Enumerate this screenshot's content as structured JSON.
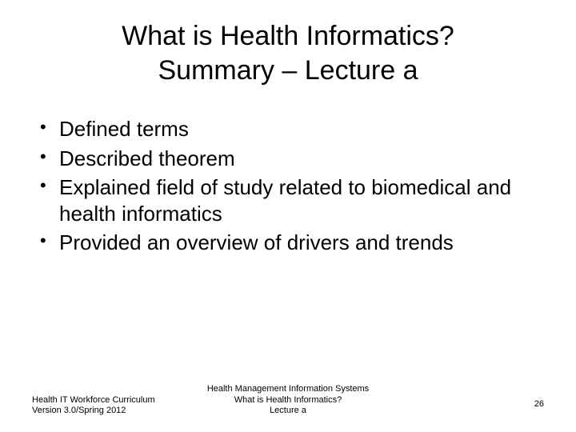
{
  "title_line1": "What is Health Informatics?",
  "title_line2": "Summary – Lecture a",
  "bullets": [
    "Defined terms",
    "Described theorem",
    "Explained field of study related to biomedical and health informatics",
    "Provided an overview of drivers and trends"
  ],
  "footer": {
    "left_line1": "Health IT Workforce Curriculum",
    "left_line2": "Version 3.0/Spring 2012",
    "center_line1": "Health Management Information Systems",
    "center_line2": "What is Health Informatics?",
    "center_line3": "Lecture a",
    "page_number": "26"
  }
}
